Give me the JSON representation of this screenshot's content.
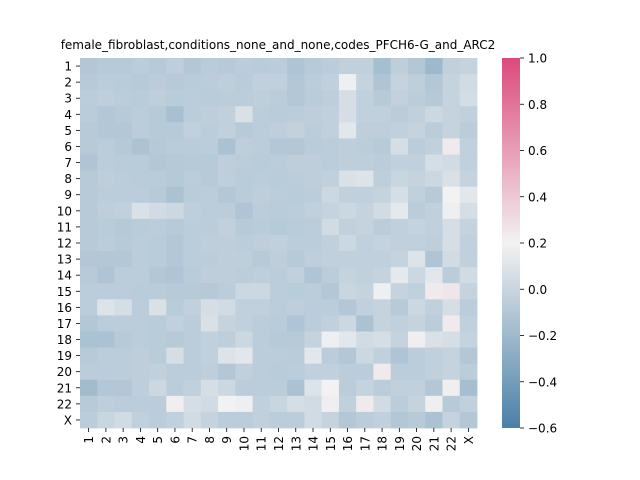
{
  "chart_data": {
    "type": "heatmap",
    "title": "female_fibroblast,conditions_none_and_none,codes_PFCH6-G_and_ARC2",
    "xlabel": "",
    "ylabel": "",
    "row_labels": [
      "1",
      "2",
      "3",
      "4",
      "5",
      "6",
      "7",
      "8",
      "9",
      "10",
      "11",
      "12",
      "13",
      "14",
      "15",
      "16",
      "17",
      "18",
      "19",
      "20",
      "21",
      "22",
      "X"
    ],
    "col_labels": [
      "1",
      "2",
      "3",
      "4",
      "5",
      "6",
      "7",
      "8",
      "9",
      "10",
      "11",
      "12",
      "13",
      "14",
      "15",
      "16",
      "17",
      "18",
      "19",
      "20",
      "21",
      "22",
      "X"
    ],
    "colorbar": {
      "min": -0.6,
      "max": 1.0,
      "ticks": [
        "1.0",
        "0.8",
        "0.6",
        "0.4",
        "0.2",
        "0.0",
        "−0.2",
        "−0.4",
        "−0.6"
      ],
      "tick_values": [
        1.0,
        0.8,
        0.6,
        0.4,
        0.2,
        0.0,
        -0.2,
        -0.4,
        -0.6
      ],
      "colors": {
        "low": "#4a80a7",
        "mid": "#f2f2f2",
        "high": "#dc4a7a"
      }
    },
    "values": [
      [
        -0.1,
        -0.08,
        -0.08,
        -0.06,
        -0.08,
        -0.05,
        -0.1,
        -0.07,
        -0.08,
        -0.06,
        -0.07,
        -0.06,
        -0.12,
        -0.08,
        -0.06,
        -0.04,
        -0.04,
        -0.16,
        -0.05,
        -0.1,
        -0.2,
        -0.04,
        -0.02
      ],
      [
        -0.08,
        -0.06,
        -0.07,
        -0.08,
        -0.06,
        -0.08,
        -0.07,
        -0.06,
        -0.05,
        -0.07,
        -0.04,
        -0.04,
        -0.1,
        -0.06,
        -0.04,
        0.18,
        -0.02,
        -0.12,
        -0.02,
        -0.05,
        -0.1,
        -0.02,
        0.04
      ],
      [
        -0.06,
        -0.05,
        -0.06,
        -0.07,
        -0.05,
        -0.07,
        -0.06,
        -0.07,
        -0.06,
        -0.06,
        -0.05,
        -0.06,
        -0.1,
        -0.07,
        -0.05,
        0.06,
        -0.04,
        -0.08,
        -0.03,
        -0.06,
        -0.09,
        -0.02,
        0.05
      ],
      [
        -0.07,
        -0.1,
        -0.08,
        -0.06,
        -0.08,
        -0.15,
        -0.06,
        -0.05,
        -0.04,
        0.08,
        -0.06,
        -0.07,
        -0.06,
        -0.05,
        -0.04,
        0.06,
        -0.04,
        -0.04,
        -0.06,
        -0.04,
        0.02,
        -0.02,
        -0.04
      ],
      [
        -0.08,
        -0.1,
        -0.1,
        -0.06,
        -0.08,
        -0.08,
        -0.04,
        -0.06,
        -0.04,
        -0.08,
        -0.06,
        -0.05,
        -0.03,
        -0.06,
        -0.04,
        0.12,
        -0.05,
        -0.05,
        -0.04,
        -0.02,
        -0.06,
        -0.02,
        -0.06
      ],
      [
        -0.08,
        -0.06,
        -0.09,
        -0.13,
        -0.09,
        -0.07,
        -0.07,
        -0.06,
        -0.14,
        -0.05,
        -0.06,
        -0.1,
        -0.1,
        -0.07,
        -0.06,
        -0.05,
        -0.06,
        -0.08,
        0.06,
        -0.06,
        -0.04,
        0.24,
        -0.04
      ],
      [
        -0.12,
        -0.06,
        -0.07,
        -0.07,
        -0.1,
        -0.09,
        -0.08,
        -0.08,
        -0.05,
        -0.06,
        -0.07,
        -0.06,
        -0.05,
        -0.05,
        -0.06,
        -0.05,
        -0.05,
        -0.06,
        -0.04,
        -0.04,
        0.06,
        0.04,
        -0.04
      ],
      [
        -0.08,
        -0.05,
        -0.06,
        -0.07,
        -0.07,
        -0.09,
        -0.06,
        -0.08,
        -0.05,
        -0.07,
        -0.06,
        -0.07,
        -0.06,
        -0.05,
        -0.04,
        0.08,
        0.1,
        -0.05,
        0.0,
        -0.02,
        0.02,
        0.08,
        -0.02
      ],
      [
        -0.08,
        -0.06,
        -0.06,
        -0.06,
        -0.08,
        -0.14,
        -0.07,
        -0.06,
        -0.1,
        -0.07,
        -0.05,
        -0.06,
        -0.07,
        -0.06,
        0.02,
        -0.04,
        -0.04,
        -0.02,
        0.06,
        -0.04,
        -0.08,
        0.2,
        0.12
      ],
      [
        -0.08,
        -0.05,
        -0.04,
        0.08,
        0.04,
        0.02,
        -0.05,
        -0.06,
        -0.06,
        -0.12,
        -0.06,
        -0.07,
        -0.06,
        -0.04,
        -0.02,
        0.02,
        -0.02,
        0.04,
        0.14,
        -0.06,
        -0.04,
        0.18,
        0.06
      ],
      [
        -0.08,
        -0.07,
        -0.09,
        -0.07,
        -0.06,
        -0.08,
        -0.06,
        -0.06,
        -0.04,
        -0.08,
        -0.07,
        -0.08,
        -0.07,
        -0.06,
        0.04,
        -0.04,
        -0.02,
        -0.06,
        -0.04,
        -0.02,
        -0.04,
        0.06,
        -0.02
      ],
      [
        -0.08,
        -0.06,
        -0.08,
        -0.06,
        -0.07,
        -0.1,
        -0.06,
        -0.05,
        -0.05,
        -0.06,
        -0.05,
        -0.04,
        -0.06,
        -0.06,
        -0.04,
        0.02,
        -0.04,
        -0.02,
        -0.04,
        -0.04,
        -0.05,
        0.06,
        -0.04
      ],
      [
        -0.1,
        -0.1,
        -0.1,
        -0.06,
        -0.07,
        -0.1,
        -0.06,
        -0.06,
        -0.05,
        -0.05,
        -0.08,
        -0.05,
        -0.08,
        -0.05,
        -0.04,
        -0.04,
        -0.04,
        -0.04,
        -0.02,
        0.1,
        -0.12,
        0.04,
        -0.04
      ],
      [
        -0.08,
        -0.12,
        -0.06,
        -0.06,
        -0.1,
        -0.12,
        -0.07,
        -0.05,
        -0.05,
        -0.06,
        -0.05,
        -0.06,
        -0.04,
        -0.12,
        -0.06,
        -0.02,
        -0.04,
        -0.02,
        0.14,
        0.02,
        0.12,
        -0.06,
        0.04
      ],
      [
        -0.06,
        -0.06,
        -0.06,
        -0.07,
        -0.07,
        -0.08,
        -0.08,
        -0.09,
        -0.06,
        0.02,
        0.02,
        -0.06,
        -0.07,
        -0.06,
        -0.1,
        0.0,
        -0.02,
        0.18,
        -0.02,
        -0.04,
        0.24,
        0.26,
        -0.02
      ],
      [
        -0.06,
        0.1,
        0.06,
        -0.06,
        0.08,
        -0.07,
        -0.04,
        0.06,
        0.04,
        -0.04,
        -0.04,
        -0.06,
        -0.05,
        -0.06,
        -0.06,
        -0.1,
        -0.04,
        -0.02,
        -0.08,
        0.02,
        -0.04,
        0.06,
        -0.06
      ],
      [
        -0.1,
        -0.06,
        -0.06,
        -0.06,
        -0.07,
        -0.04,
        -0.06,
        0.08,
        -0.02,
        -0.04,
        -0.06,
        -0.07,
        -0.12,
        -0.06,
        -0.04,
        0.02,
        -0.14,
        -0.02,
        -0.04,
        -0.02,
        -0.06,
        0.24,
        -0.04
      ],
      [
        -0.14,
        -0.14,
        -0.08,
        -0.06,
        -0.07,
        -0.08,
        -0.06,
        -0.04,
        -0.05,
        0.02,
        -0.06,
        -0.08,
        -0.08,
        -0.02,
        0.18,
        0.12,
        0.04,
        0.06,
        -0.02,
        0.22,
        0.08,
        0.06,
        -0.02
      ],
      [
        -0.08,
        -0.06,
        -0.06,
        -0.05,
        -0.07,
        0.06,
        -0.06,
        -0.04,
        0.1,
        0.12,
        -0.06,
        -0.06,
        -0.07,
        0.12,
        -0.06,
        -0.1,
        0.02,
        -0.04,
        -0.12,
        -0.06,
        -0.04,
        -0.02,
        -0.1
      ],
      [
        -0.06,
        -0.06,
        -0.06,
        -0.05,
        -0.04,
        -0.06,
        -0.06,
        -0.05,
        -0.1,
        -0.04,
        -0.06,
        -0.07,
        -0.06,
        -0.04,
        -0.04,
        -0.06,
        -0.06,
        0.24,
        -0.06,
        -0.06,
        -0.04,
        -0.02,
        -0.06
      ],
      [
        -0.18,
        -0.1,
        -0.1,
        -0.05,
        0.02,
        -0.06,
        -0.04,
        0.06,
        0.02,
        -0.06,
        -0.06,
        -0.06,
        -0.14,
        0.1,
        0.2,
        -0.06,
        -0.02,
        -0.06,
        -0.04,
        -0.04,
        -0.1,
        0.22,
        -0.16
      ],
      [
        -0.08,
        -0.05,
        -0.06,
        -0.06,
        -0.06,
        0.22,
        0.06,
        0.04,
        0.2,
        0.18,
        -0.04,
        0.0,
        0.06,
        0.04,
        0.22,
        -0.04,
        0.24,
        0.04,
        -0.06,
        -0.02,
        0.22,
        -0.08,
        -0.04
      ],
      [
        -0.06,
        0.0,
        0.04,
        -0.04,
        -0.06,
        -0.04,
        0.04,
        -0.02,
        -0.06,
        -0.06,
        -0.04,
        -0.06,
        -0.06,
        0.04,
        -0.02,
        -0.1,
        -0.06,
        -0.04,
        -0.1,
        -0.08,
        -0.14,
        -0.02,
        -0.1
      ]
    ]
  }
}
